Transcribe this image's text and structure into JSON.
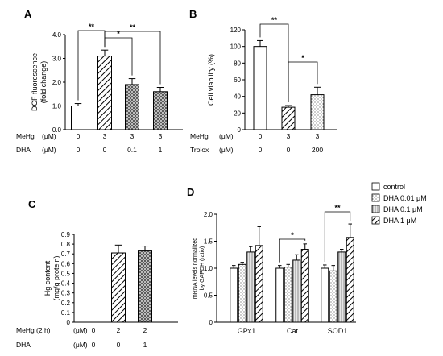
{
  "colors": {
    "ink": "#000000",
    "bar_fill": "#ffffff"
  },
  "chart_data": [
    {
      "panel": "A",
      "type": "bar",
      "ylabel": [
        "DCF fluorescence",
        "(fold change)"
      ],
      "ylim": [
        0,
        4.0
      ],
      "yticks": [
        "0.0",
        "1.0",
        "2.0",
        "3.0",
        "4.0"
      ],
      "values": [
        1.0,
        3.1,
        1.9,
        1.6
      ],
      "errors": [
        0.1,
        0.25,
        0.25,
        0.18
      ],
      "patterns": [
        "none",
        "hatch",
        "crosshatch",
        "crosshatch"
      ],
      "conditions": [
        {
          "label": "MeHg",
          "unit": "(μM)",
          "values": [
            "0",
            "3",
            "3",
            "3"
          ]
        },
        {
          "label": "DHA",
          "unit": "(μM)",
          "values": [
            "0",
            "0",
            "0.1",
            "1"
          ]
        }
      ],
      "significance": [
        {
          "from": 0,
          "to": 1,
          "label": "**"
        },
        {
          "from": 1,
          "to": 2,
          "label": "*"
        },
        {
          "from": 1,
          "to": 3,
          "label": "**"
        }
      ]
    },
    {
      "panel": "B",
      "type": "bar",
      "ylabel": [
        "Cell viability (%)"
      ],
      "ylim": [
        0,
        120
      ],
      "yticks": [
        "0",
        "20",
        "40",
        "60",
        "80",
        "100",
        "120"
      ],
      "values": [
        100,
        27,
        42
      ],
      "errors": [
        7,
        2,
        9
      ],
      "patterns": [
        "none",
        "hatch",
        "dots"
      ],
      "conditions": [
        {
          "label": "MeHg",
          "unit": "(μM)",
          "values": [
            "0",
            "3",
            "3"
          ]
        },
        {
          "label": "Trolox",
          "unit": "(μM)",
          "values": [
            "0",
            "0",
            "200"
          ]
        }
      ],
      "significance": [
        {
          "from": 0,
          "to": 1,
          "label": "**"
        },
        {
          "from": 1,
          "to": 2,
          "label": "*"
        }
      ]
    },
    {
      "panel": "C",
      "type": "bar",
      "ylabel": [
        "Hg content",
        "(mg/g protein)"
      ],
      "ylim": [
        0,
        0.9
      ],
      "yticks": [
        "0",
        "0.1",
        "0.2",
        "0.3",
        "0.4",
        "0.5",
        "0.6",
        "0.7",
        "0.8",
        "0.9"
      ],
      "values": [
        0,
        0.71,
        0.73
      ],
      "errors": [
        0,
        0.08,
        0.05
      ],
      "patterns": [
        "none",
        "hatch",
        "crosshatch"
      ],
      "conditions": [
        {
          "label": "MeHg (2 h)",
          "unit": "(μM)",
          "values": [
            "0",
            "2",
            "2"
          ]
        },
        {
          "label": "DHA",
          "unit": "(μM)",
          "values": [
            "0",
            "0",
            "1"
          ]
        }
      ],
      "significance": []
    },
    {
      "panel": "D",
      "type": "bar",
      "ylabel": [
        "mRNA levels normalized",
        "by GAPDH (ratio)"
      ],
      "ylim": [
        0,
        2.0
      ],
      "yticks": [
        "0",
        "0.5",
        "1.0",
        "1.5",
        "2.0"
      ],
      "categories": [
        "GPx1",
        "Cat",
        "SOD1"
      ],
      "series": [
        {
          "name": "control",
          "pattern": "none",
          "values": [
            1.0,
            1.0,
            1.0
          ],
          "errors": [
            0.05,
            0.05,
            0.06
          ]
        },
        {
          "name": "DHA 0.01 μM",
          "pattern": "dots",
          "values": [
            1.07,
            1.02,
            0.95
          ],
          "errors": [
            0.04,
            0.05,
            0.1
          ]
        },
        {
          "name": "DHA 0.1 μM",
          "pattern": "vlines",
          "values": [
            1.3,
            1.15,
            1.3
          ],
          "errors": [
            0.1,
            0.1,
            0.05
          ]
        },
        {
          "name": "DHA 1 μM",
          "pattern": "hatch",
          "values": [
            1.42,
            1.35,
            1.57
          ],
          "errors": [
            0.35,
            0.1,
            0.25
          ]
        }
      ],
      "legend": "top-right",
      "significance": [
        {
          "category": 1,
          "from": 0,
          "to": 3,
          "label": "*"
        },
        {
          "category": 2,
          "from": 0,
          "to": 3,
          "label": "**"
        }
      ]
    }
  ]
}
